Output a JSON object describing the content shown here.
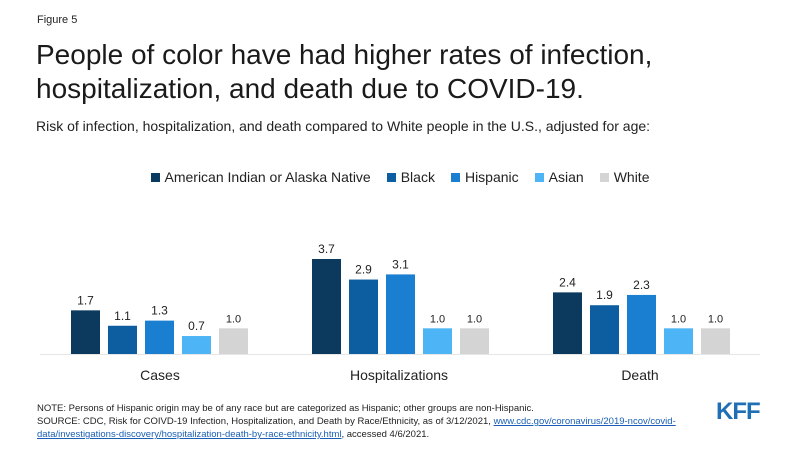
{
  "figure_label": "Figure 5",
  "title": "People of color have had higher rates of infection, hospitalization, and death due to COVID-19.",
  "subtitle": "Risk of infection, hospitalization, and death compared to White people in the U.S., adjusted for age:",
  "note": "NOTE: Persons of Hispanic origin may be of any race but are categorized as Hispanic; other groups are non-Hispanic.",
  "source_prefix": "SOURCE: CDC, Risk for COIVD-19 Infection, Hospitalization, and Death by Race/Ethnicity, as of 3/12/2021, ",
  "source_link": "www.cdc.gov/coronavirus/2019-ncov/covid-data/investigations-discovery/hospitalization-death-by-race-ethnicity.html",
  "source_suffix": ", accessed 4/6/2021.",
  "logo": "KFF",
  "chart_data": {
    "type": "bar",
    "categories": [
      "Cases",
      "Hospitalizations",
      "Death"
    ],
    "series": [
      {
        "name": "American Indian or Alaska Native",
        "color": "#0b3a5e",
        "values": [
          1.7,
          3.7,
          2.4
        ]
      },
      {
        "name": "Black",
        "color": "#0d5da1",
        "values": [
          1.1,
          2.9,
          1.9
        ]
      },
      {
        "name": "Hispanic",
        "color": "#1a7fd0",
        "values": [
          1.3,
          3.1,
          2.3
        ]
      },
      {
        "name": "Asian",
        "color": "#4db5f5",
        "values": [
          0.7,
          1.0,
          1.0
        ]
      },
      {
        "name": "White",
        "color": "#d4d4d4",
        "values": [
          1.0,
          1.0,
          1.0
        ]
      }
    ],
    "data_labels": [
      [
        "1.7",
        "3.7",
        "2.4"
      ],
      [
        "1.1",
        "2.9",
        "1.9"
      ],
      [
        "1.3",
        "3.1",
        "2.3"
      ],
      [
        "0.7",
        "1.0",
        "1.0"
      ],
      [
        "1.0",
        "1.0",
        "1.0"
      ]
    ],
    "ylim": [
      0,
      3.7
    ],
    "legend_position": "top",
    "grid": false
  }
}
